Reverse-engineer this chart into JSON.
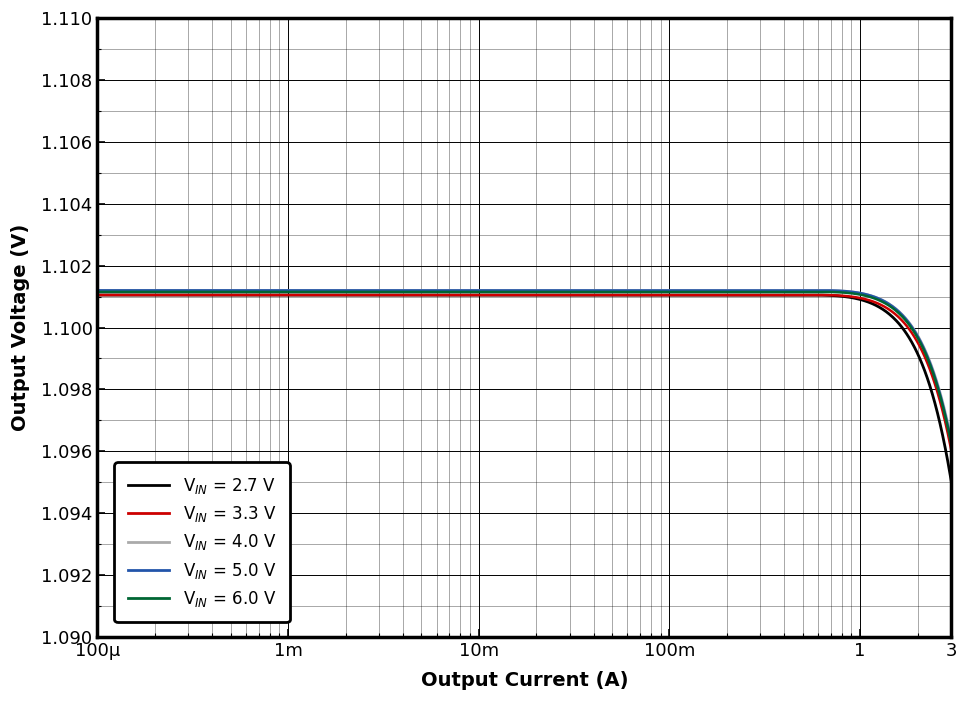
{
  "title": "",
  "xlabel": "Output Current (A)",
  "ylabel": "Output Voltage (V)",
  "ylim": [
    1.09,
    1.11
  ],
  "yticks": [
    1.09,
    1.092,
    1.094,
    1.096,
    1.098,
    1.1,
    1.102,
    1.104,
    1.106,
    1.108,
    1.11
  ],
  "xtick_labels": [
    "100μ",
    "1m",
    "10m",
    "100m",
    "1",
    "3"
  ],
  "xtick_values": [
    0.0001,
    0.001,
    0.01,
    0.1,
    1.0,
    3.0
  ],
  "background_color": "#ffffff",
  "series": [
    {
      "label": "V$_{IN}$ = 2.7 V",
      "color": "#000000",
      "lw": 2.0,
      "vin": 2.7,
      "flat_v": 1.10105,
      "knee": 0.55,
      "drop_at_max": 0.006,
      "exp": 2.2
    },
    {
      "label": "V$_{IN}$ = 3.3 V",
      "color": "#cc0000",
      "lw": 1.8,
      "vin": 3.3,
      "flat_v": 1.10105,
      "knee": 0.6,
      "drop_at_max": 0.005,
      "exp": 2.2
    },
    {
      "label": "V$_{IN}$ = 4.0 V",
      "color": "#aaaaaa",
      "lw": 1.8,
      "vin": 4.0,
      "flat_v": 1.1012,
      "knee": 0.62,
      "drop_at_max": 0.0048,
      "exp": 2.2
    },
    {
      "label": "V$_{IN}$ = 5.0 V",
      "color": "#2255aa",
      "lw": 1.8,
      "vin": 5.0,
      "flat_v": 1.1012,
      "knee": 0.62,
      "drop_at_max": 0.0049,
      "exp": 2.2
    },
    {
      "label": "V$_{IN}$ = 6.0 V",
      "color": "#006633",
      "lw": 1.8,
      "vin": 6.0,
      "flat_v": 1.10115,
      "knee": 0.62,
      "drop_at_max": 0.0049,
      "exp": 2.2
    }
  ],
  "iout_max": 3.0
}
